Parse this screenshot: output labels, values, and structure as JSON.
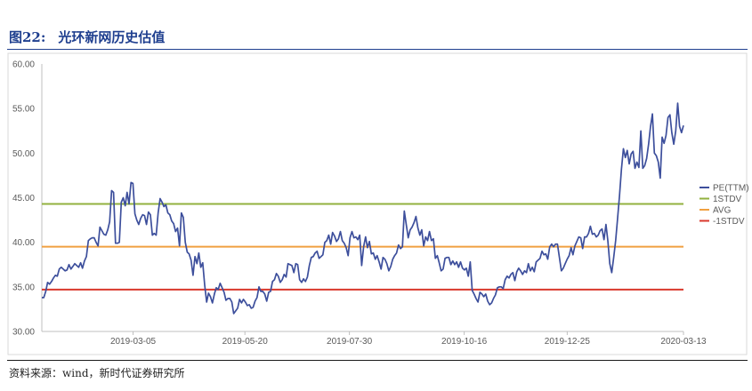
{
  "figure": {
    "number": "图22:",
    "caption": "光环新网历史估值",
    "source": "资料来源：wind，新时代证券研究所"
  },
  "chart_data": {
    "type": "line",
    "y_ticks": [
      "60.00",
      "55.00",
      "50.00",
      "45.00",
      "40.00",
      "35.00",
      "30.00"
    ],
    "ylim": [
      30,
      60
    ],
    "x_ticks": [
      "2019-03-05",
      "2019-05-20",
      "2019-07-30",
      "2019-10-16",
      "2019-12-25",
      "2020-03-13"
    ],
    "x_range": [
      "2019-01-02",
      "2020-03-13"
    ],
    "grid": false,
    "legend_position": "right",
    "series": [
      {
        "name": "PE(TTM)",
        "color": "#3d4f9c",
        "values": [
          33.8,
          33.8,
          34.5,
          35.5,
          35.3,
          35.6,
          36.0,
          36.3,
          36.2,
          37.0,
          37.2,
          37.0,
          36.8,
          36.9,
          37.5,
          37.0,
          37.3,
          37.6,
          37.4,
          37.2,
          37.7,
          37.1,
          37.9,
          38.4,
          40.2,
          40.4,
          40.5,
          40.5,
          40.0,
          39.6,
          41.7,
          41.3,
          40.9,
          40.8,
          41.4,
          42.3,
          45.8,
          45.6,
          39.9,
          39.9,
          40.0,
          44.5,
          45.0,
          44.1,
          45.6,
          44.3,
          46.7,
          46.6,
          43.2,
          42.5,
          42.0,
          42.7,
          43.1,
          43.0,
          42.0,
          43.4,
          43.1,
          40.8,
          41.0,
          40.8,
          43.3,
          44.9,
          44.5,
          44.0,
          44.2,
          43.3,
          43.1,
          42.4,
          42.1,
          41.2,
          41.6,
          39.6,
          43.3,
          42.8,
          40.0,
          38.9,
          38.7,
          38.0,
          36.3,
          38.4,
          37.6,
          38.8,
          37.2,
          37.7,
          35.2,
          33.3,
          34.3,
          33.9,
          33.2,
          34.2,
          34.9,
          34.7,
          35.4,
          34.9,
          34.4,
          33.5,
          33.7,
          33.7,
          33.3,
          32.0,
          32.3,
          32.6,
          33.6,
          33.2,
          33.6,
          33.3,
          32.9,
          33.0,
          32.6,
          32.7,
          33.4,
          33.8,
          35.0,
          34.5,
          34.5,
          34.2,
          33.4,
          34.4,
          34.5,
          35.6,
          35.8,
          36.5,
          36.2,
          35.5,
          35.8,
          36.4,
          36.1,
          37.6,
          37.5,
          37.4,
          36.6,
          37.6,
          37.5,
          35.8,
          35.5,
          35.9,
          35.6,
          36.1,
          37.4,
          38.3,
          38.4,
          38.8,
          39.0,
          38.2,
          38.4,
          38.6,
          40.0,
          40.2,
          40.8,
          39.8,
          41.1,
          40.7,
          40.1,
          40.4,
          41.2,
          40.2,
          39.9,
          39.4,
          38.5,
          40.5,
          41.2,
          40.5,
          40.6,
          40.3,
          40.8,
          37.4,
          39.5,
          40.6,
          39.4,
          40.1,
          38.7,
          38.8,
          38.1,
          38.5,
          37.8,
          37.0,
          38.3,
          38.1,
          37.6,
          36.8,
          37.3,
          38.1,
          38.5,
          38.8,
          39.7,
          39.3,
          39.5,
          43.5,
          42.0,
          40.5,
          41.4,
          41.7,
          42.2,
          42.9,
          41.6,
          40.8,
          41.4,
          39.6,
          40.6,
          40.2,
          41.2,
          40.2,
          40.4,
          38.2,
          38.5,
          37.7,
          36.8,
          37.0,
          38.2,
          38.3,
          38.3,
          37.5,
          37.9,
          37.5,
          37.8,
          37.2,
          37.8,
          37.1,
          36.9,
          37.1,
          36.2,
          37.8,
          34.6,
          34.2,
          33.7,
          33.3,
          34.4,
          34.2,
          33.9,
          34.2,
          33.4,
          33.0,
          33.2,
          33.7,
          34.1,
          34.9,
          35.0,
          35.0,
          34.8,
          35.8,
          36.2,
          36.0,
          36.4,
          36.6,
          35.7,
          36.7,
          37.1,
          36.8,
          36.4,
          36.8,
          36.6,
          37.6,
          36.8,
          37.2,
          36.7,
          37.8,
          38.0,
          38.2,
          39.0,
          38.6,
          38.7,
          38.1,
          39.5,
          39.8,
          39.5,
          39.8,
          39.8,
          38.3,
          36.8,
          37.1,
          37.6,
          38.1,
          38.5,
          39.4,
          38.6,
          39.6,
          40.1,
          40.6,
          40.5,
          39.3,
          40.6,
          40.6,
          41.0,
          41.8,
          40.9,
          41.0,
          40.6,
          40.8,
          41.3,
          41.5,
          40.3,
          42.0,
          40.2,
          37.6,
          36.6,
          38.3,
          40.2,
          42.6,
          45.2,
          48.2,
          50.5,
          49.5,
          50.3,
          48.8,
          49.9,
          50.2,
          48.3,
          49.0,
          48.4,
          52.5,
          48.3,
          48.6,
          49.4,
          51.0,
          53.0,
          54.4,
          50.0,
          49.7,
          49.0,
          47.2,
          51.8,
          51.1,
          52.0,
          54.0,
          54.3,
          52.3,
          51.0,
          52.5,
          55.6,
          53.0,
          52.3,
          53.1
        ]
      },
      {
        "name": "1STDV",
        "color": "#92b13f",
        "value": 44.3
      },
      {
        "name": "AVG",
        "color": "#f0a040",
        "value": 39.5
      },
      {
        "name": "-1STDV",
        "color": "#d9382c",
        "value": 34.7
      }
    ]
  }
}
